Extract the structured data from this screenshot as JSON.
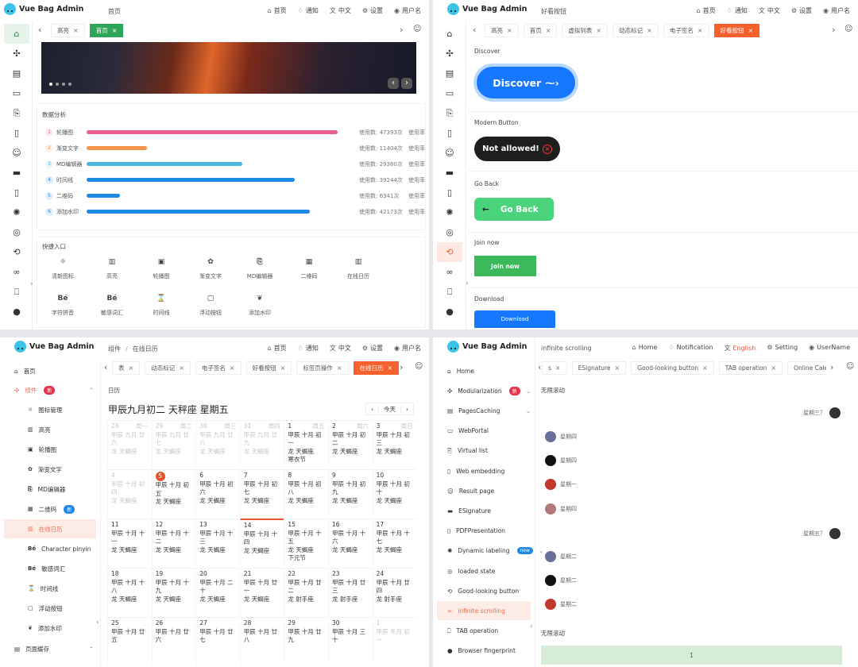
{
  "app_name": "Vue Bag Admin",
  "colors": {
    "green": "#2ea65a",
    "orange": "#f5602c",
    "blue": "#1e88e5",
    "pink": "#ec5e8f",
    "amber": "#f4934a",
    "cyan": "#48b9e0"
  },
  "nav_zh": {
    "home": "首页",
    "notify": "通知",
    "lang": "中文",
    "settings": "设置",
    "user": "用户名"
  },
  "nav_en": {
    "home": "Home",
    "notify": "Notification",
    "lang": "English",
    "settings": "Setting",
    "user": "UserName"
  },
  "panel1": {
    "header_title": "首页",
    "tabs": [
      {
        "label": "高亮",
        "active": false
      },
      {
        "label": "首页",
        "active": true
      }
    ],
    "carousel_dots": 4,
    "analysis": {
      "title": "数据分析",
      "rows": [
        {
          "rank": "1",
          "name": "轮播图",
          "value": 47393,
          "stat": "使用数: 47393次",
          "rate": "使用率",
          "color": "#ec5e8f"
        },
        {
          "rank": "2",
          "name": "渐变文字",
          "value": 11404,
          "stat": "使用数: 11404次",
          "rate": "使用率",
          "color": "#f4934a"
        },
        {
          "rank": "3",
          "name": "MD编辑器",
          "value": 29360,
          "stat": "使用数: 29360次",
          "rate": "使用率",
          "color": "#48b9e0"
        },
        {
          "rank": "4",
          "name": "时间线",
          "value": 39244,
          "stat": "使用数: 39244次",
          "rate": "使用率",
          "color": "#1e88e5"
        },
        {
          "rank": "5",
          "name": "二维码",
          "value": 6341,
          "stat": "使用数: 6341次",
          "rate": "使用率",
          "color": "#1e88e5"
        },
        {
          "rank": "6",
          "name": "添加水印",
          "value": 42173,
          "stat": "使用数: 42173次",
          "rate": "使用率",
          "color": "#1e88e5"
        }
      ]
    },
    "quick": {
      "title": "快捷入口",
      "items": [
        {
          "icon": "☼",
          "label": "清新图标"
        },
        {
          "icon": "▥",
          "label": "高亮"
        },
        {
          "icon": "▣",
          "label": "轮播图"
        },
        {
          "icon": "✿",
          "label": "渐变文字"
        },
        {
          "icon": "⎘",
          "label": "MD编辑器"
        },
        {
          "icon": "▦",
          "label": "二维码"
        },
        {
          "icon": "▥",
          "label": "在线日历"
        },
        {
          "icon": "Bé",
          "label": "字符拼音"
        },
        {
          "icon": "Bé",
          "label": "敏感词汇"
        },
        {
          "icon": "⌛",
          "label": "时间线"
        },
        {
          "icon": "▢",
          "label": "浮动按钮"
        },
        {
          "icon": "❦",
          "label": "添加水印"
        }
      ]
    }
  },
  "panel2": {
    "header_title": "好看按钮",
    "tabs": [
      {
        "label": "高亮",
        "active": false
      },
      {
        "label": "首页",
        "active": false
      },
      {
        "label": "虚拟列表",
        "active": false
      },
      {
        "label": "动态标记",
        "active": false
      },
      {
        "label": "电子签名",
        "active": false
      },
      {
        "label": "好看按钮",
        "active": true
      }
    ],
    "sections": {
      "discover": {
        "label": "Discover",
        "button": "Discover"
      },
      "modern": {
        "label": "Modern Button",
        "button": "Not allowed!"
      },
      "goback": {
        "label": "Go Back",
        "button": "Go Back"
      },
      "join": {
        "label": "Join now",
        "button": "Join now"
      },
      "download": {
        "label": "Download",
        "button": "Download"
      }
    }
  },
  "panel3": {
    "breadcrumb": [
      "组件",
      "在线日历"
    ],
    "sidebar": {
      "home": "首页",
      "components": "组件",
      "components_badge": "新",
      "children": [
        {
          "icon": "☼",
          "label": "图标管理"
        },
        {
          "icon": "▥",
          "label": "高亮"
        },
        {
          "icon": "▣",
          "label": "轮播图"
        },
        {
          "icon": "✿",
          "label": "渐变文字"
        },
        {
          "icon": "⎘",
          "label": "MD编辑器"
        },
        {
          "icon": "▦",
          "label": "二维码",
          "badge": "新"
        },
        {
          "icon": "▥",
          "label": "在线日历",
          "active": true
        },
        {
          "icon": "Bé",
          "label": "Character pinyin"
        },
        {
          "icon": "Bé",
          "label": "敏感词汇"
        },
        {
          "icon": "⌛",
          "label": "时间线"
        },
        {
          "icon": "▢",
          "label": "浮动按钮"
        },
        {
          "icon": "❦",
          "label": "添加水印"
        }
      ],
      "page_cache": "页面缓存"
    },
    "tabs": [
      {
        "label": "表",
        "active": false
      },
      {
        "label": "动态标记",
        "active": false
      },
      {
        "label": "电子签名",
        "active": false
      },
      {
        "label": "好看按钮",
        "active": false
      },
      {
        "label": "标签页操作",
        "active": false
      },
      {
        "label": "在线日历",
        "active": true
      }
    ],
    "section_label": "日历",
    "calendar": {
      "title": "甲辰九月初二 天秤座 星期五",
      "today_btn": "今天",
      "weekdays": [
        "周一",
        "周二",
        "周三",
        "周四",
        "周五",
        "周六",
        "周日"
      ],
      "weeks": [
        [
          {
            "d": "28",
            "l": "甲辰 九月 廿六",
            "z": "龙 天蝎座",
            "g": true
          },
          {
            "d": "29",
            "l": "甲辰 九月 廿七",
            "z": "龙 天蝎座",
            "g": true
          },
          {
            "d": "30",
            "l": "甲辰 九月 廿八",
            "z": "龙 天蝎座",
            "g": true
          },
          {
            "d": "31",
            "l": "甲辰 九月 廿九",
            "z": "龙 天蝎座",
            "g": true
          },
          {
            "d": "1",
            "l": "甲辰 十月 初一",
            "z": "龙 天蝎座",
            "f": "寒衣节"
          },
          {
            "d": "2",
            "l": "甲辰 十月 初二",
            "z": "龙 天蝎座"
          },
          {
            "d": "3",
            "l": "甲辰 十月 初三",
            "z": "龙 天蝎座"
          }
        ],
        [
          {
            "d": "4",
            "l": "甲辰 十月 初四",
            "z": "龙 天蝎座",
            "g": true
          },
          {
            "d": "5",
            "l": "甲辰 十月 初五",
            "z": "龙 天蝎座",
            "sel": true
          },
          {
            "d": "6",
            "l": "甲辰 十月 初六",
            "z": "龙 天蝎座"
          },
          {
            "d": "7",
            "l": "甲辰 十月 初七",
            "z": "龙 天蝎座"
          },
          {
            "d": "8",
            "l": "甲辰 十月 初八",
            "z": "龙 天蝎座"
          },
          {
            "d": "9",
            "l": "甲辰 十月 初九",
            "z": "龙 天蝎座"
          },
          {
            "d": "10",
            "l": "甲辰 十月 初十",
            "z": "龙 天蝎座"
          }
        ],
        [
          {
            "d": "11",
            "l": "甲辰 十月 十一",
            "z": "龙 天蝎座"
          },
          {
            "d": "12",
            "l": "甲辰 十月 十二",
            "z": "龙 天蝎座"
          },
          {
            "d": "13",
            "l": "甲辰 十月 十三",
            "z": "龙 天蝎座"
          },
          {
            "d": "14",
            "l": "甲辰 十月 十四",
            "z": "龙 天蝎座",
            "mark": true
          },
          {
            "d": "15",
            "l": "甲辰 十月 十五",
            "z": "龙 天蝎座",
            "f": "下元节"
          },
          {
            "d": "16",
            "l": "甲辰 十月 十六",
            "z": "龙 天蝎座"
          },
          {
            "d": "17",
            "l": "甲辰 十月 十七",
            "z": "龙 天蝎座"
          }
        ],
        [
          {
            "d": "18",
            "l": "甲辰 十月 十八",
            "z": "龙 天蝎座"
          },
          {
            "d": "19",
            "l": "甲辰 十月 十九",
            "z": "龙 天蝎座"
          },
          {
            "d": "20",
            "l": "甲辰 十月 二十",
            "z": "龙 天蝎座"
          },
          {
            "d": "21",
            "l": "甲辰 十月 廿一",
            "z": "龙 天蝎座"
          },
          {
            "d": "22",
            "l": "甲辰 十月 廿二",
            "z": "龙 射手座"
          },
          {
            "d": "23",
            "l": "甲辰 十月 廿三",
            "z": "龙 射手座"
          },
          {
            "d": "24",
            "l": "甲辰 十月 廿四",
            "z": "龙 射手座"
          }
        ],
        [
          {
            "d": "25",
            "l": "甲辰 十月 廿五"
          },
          {
            "d": "26",
            "l": "甲辰 十月 廿六"
          },
          {
            "d": "27",
            "l": "甲辰 十月 廿七"
          },
          {
            "d": "28",
            "l": "甲辰 十月 廿八"
          },
          {
            "d": "29",
            "l": "甲辰 十月 廿九"
          },
          {
            "d": "30",
            "l": "甲辰 十月 三十"
          },
          {
            "d": "1",
            "l": "甲辰 冬月 初一",
            "g": true
          }
        ]
      ]
    }
  },
  "panel4": {
    "header_title": "infinite scrolling",
    "sidebar": [
      {
        "icon": "⌂",
        "label": "Home"
      },
      {
        "icon": "✣",
        "label": "Modularization",
        "badge": "新",
        "badge_color": "#e8334a",
        "chevron": true
      },
      {
        "icon": "▤",
        "label": "PagesCaching",
        "chevron": true
      },
      {
        "icon": "▭",
        "label": "WebPortal"
      },
      {
        "icon": "⎘",
        "label": "Virtual list"
      },
      {
        "icon": "▯",
        "label": "Web embedding"
      },
      {
        "icon": "☺",
        "label": "Result page"
      },
      {
        "icon": "▬",
        "label": "ESignature"
      },
      {
        "icon": "▯",
        "label": "PDFPresentation"
      },
      {
        "icon": "✺",
        "label": "Dynamic labeling",
        "badge": "new",
        "badge_color": "#1e88e5",
        "chevron": true
      },
      {
        "icon": "◎",
        "label": "loaded state"
      },
      {
        "icon": "⟲",
        "label": "Good-looking button"
      },
      {
        "icon": "∞",
        "label": "infinite scrolling",
        "active": true
      },
      {
        "icon": "⎕",
        "label": "TAB operation"
      },
      {
        "icon": "●",
        "label": "Browser fingerprint"
      }
    ],
    "tabs": [
      {
        "label": "s",
        "active": false
      },
      {
        "label": "ESignature",
        "active": false
      },
      {
        "label": "Good-looking button",
        "active": false
      },
      {
        "label": "TAB operation",
        "active": false
      },
      {
        "label": "Online Calenda",
        "active": false
      }
    ],
    "section_label": "无限滚动",
    "messages": [
      {
        "side": "right",
        "text": "星期三？",
        "avatar": "#333"
      },
      {
        "side": "left",
        "text": "星期四",
        "avatar": "#6a6f9a"
      },
      {
        "side": "left",
        "text": "星期四",
        "avatar": "#111"
      },
      {
        "side": "left",
        "text": "星期一",
        "avatar": "#c0392b"
      },
      {
        "side": "left",
        "text": "星期四",
        "avatar": "#b07a7a"
      },
      {
        "side": "right",
        "text": "星期五？",
        "avatar": "#333"
      },
      {
        "side": "left",
        "text": "星期二",
        "avatar": "#6a6f9a"
      },
      {
        "side": "left",
        "text": "星期二",
        "avatar": "#111"
      },
      {
        "side": "left",
        "text": "星期二",
        "avatar": "#c0392b"
      }
    ],
    "section_label_2": "无限滚动",
    "list_first": "1"
  }
}
